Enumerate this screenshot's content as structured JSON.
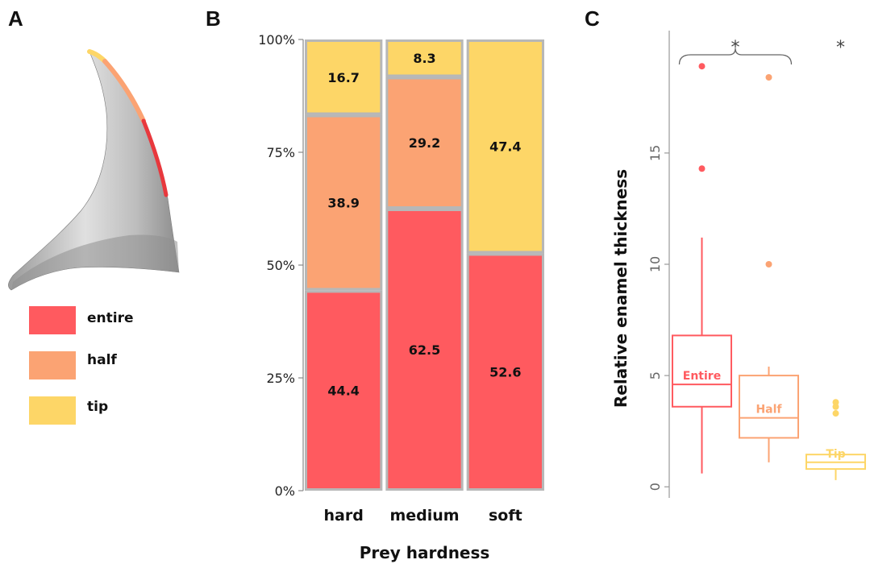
{
  "panels": {
    "a": "A",
    "b": "B",
    "c": "C"
  },
  "colors": {
    "entire": "#ff5a5f",
    "half": "#fba373",
    "tip": "#fdd667",
    "bar_border": "#b7b7b7",
    "tooth": "#bdbdbd"
  },
  "legend": [
    {
      "key": "entire",
      "label": "entire",
      "color": "#ff5a5f"
    },
    {
      "key": "half",
      "label": "half",
      "color": "#fba373"
    },
    {
      "key": "tip",
      "label": "tip",
      "color": "#fdd667"
    }
  ],
  "chart_data": [
    {
      "type": "bar",
      "stacked": true,
      "xlabel": "Prey hardness",
      "ylabel": "",
      "y_ticks": [
        "0%",
        "25%",
        "50%",
        "75%",
        "100%"
      ],
      "ylim": [
        0,
        100
      ],
      "categories": [
        "hard",
        "medium",
        "soft"
      ],
      "series": [
        {
          "name": "entire",
          "values": [
            44.4,
            62.5,
            52.6
          ],
          "labels": [
            "44.4",
            "62.5",
            "52.6"
          ]
        },
        {
          "name": "half",
          "values": [
            38.9,
            29.2,
            0
          ],
          "labels": [
            "38.9",
            "29.2",
            ""
          ]
        },
        {
          "name": "tip",
          "values": [
            16.7,
            8.3,
            47.4
          ],
          "labels": [
            "16.7",
            "8.3",
            "47.4"
          ]
        }
      ]
    },
    {
      "type": "box",
      "ylabel": "Relative enamel thickness",
      "ylim": [
        -0.5,
        20.5
      ],
      "y_ticks": [
        "0",
        "5",
        "10",
        "15"
      ],
      "y_tick_values": [
        0,
        5,
        10,
        15
      ],
      "groups": [
        {
          "name": "Entire",
          "color": "#ff5a5f",
          "whisker_low": 0.6,
          "q1": 3.6,
          "median": 4.6,
          "q3": 6.8,
          "whisker_high": 11.2,
          "outliers": [
            14.3,
            18.9
          ]
        },
        {
          "name": "Half",
          "color": "#fba373",
          "whisker_low": 1.1,
          "q1": 2.2,
          "median": 3.1,
          "q3": 5.0,
          "whisker_high": 5.4,
          "outliers": [
            10.0,
            18.4
          ]
        },
        {
          "name": "Tip",
          "color": "#fdd667",
          "whisker_low": 0.3,
          "q1": 0.8,
          "median": 1.1,
          "q3": 1.45,
          "whisker_high": 1.6,
          "outliers": [
            3.3,
            3.6,
            3.8
          ]
        }
      ],
      "significance": [
        {
          "label": "*",
          "span": [
            "Entire",
            "Half"
          ]
        },
        {
          "label": "*",
          "span": [
            "Tip"
          ]
        }
      ]
    }
  ]
}
